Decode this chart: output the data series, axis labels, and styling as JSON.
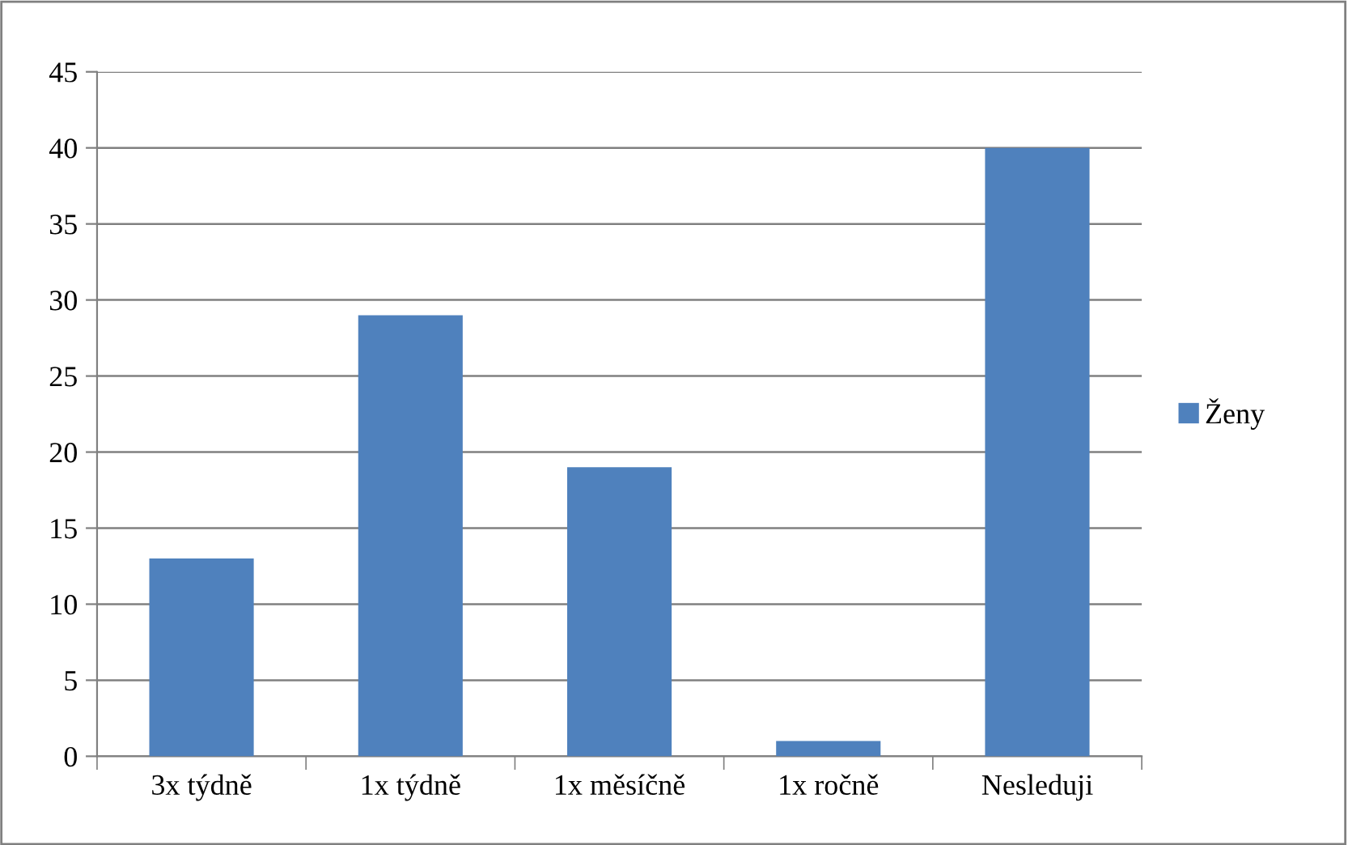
{
  "chart_data": {
    "type": "bar",
    "categories": [
      "3x týdně",
      "1x týdně",
      "1x měsíčně",
      "1x ročně",
      "Nesleduji"
    ],
    "series": [
      {
        "name": "Ženy",
        "color": "#4f81bd",
        "values": [
          13,
          29,
          19,
          1,
          40
        ]
      }
    ],
    "ylim": [
      0,
      45
    ],
    "yticks": [
      0,
      5,
      10,
      15,
      20,
      25,
      30,
      35,
      40,
      45
    ],
    "grid": "y",
    "legend": "right"
  }
}
